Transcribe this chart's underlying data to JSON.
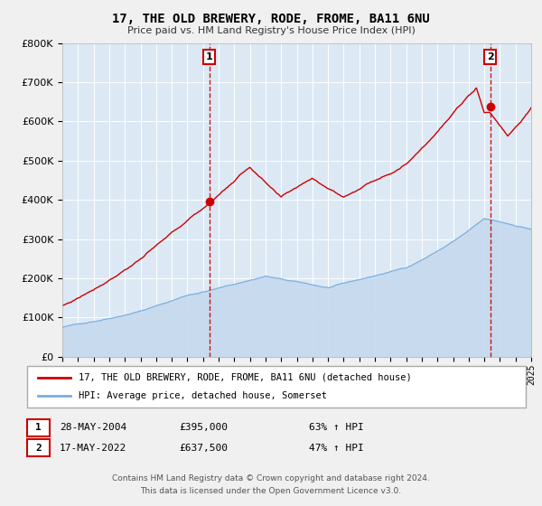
{
  "title": "17, THE OLD BREWERY, RODE, FROME, BA11 6NU",
  "subtitle": "Price paid vs. HM Land Registry's House Price Index (HPI)",
  "bg_color": "#dce9f5",
  "fig_bg_color": "#f0f0f0",
  "red_color": "#cc0000",
  "blue_color": "#7aade0",
  "blue_fill_color": "#c5d9ee",
  "sale1_year": 2004.41,
  "sale1_price": 395000,
  "sale2_year": 2022.37,
  "sale2_price": 637500,
  "ylim_min": 0,
  "ylim_max": 800000,
  "xlim_min": 1995,
  "xlim_max": 2025,
  "legend_label_red": "17, THE OLD BREWERY, RODE, FROME, BA11 6NU (detached house)",
  "legend_label_blue": "HPI: Average price, detached house, Somerset",
  "annotation1_date": "28-MAY-2004",
  "annotation1_price": "£395,000",
  "annotation1_pct": "63% ↑ HPI",
  "annotation2_date": "17-MAY-2022",
  "annotation2_price": "£637,500",
  "annotation2_pct": "47% ↑ HPI",
  "footer1": "Contains HM Land Registry data © Crown copyright and database right 2024.",
  "footer2": "This data is licensed under the Open Government Licence v3.0."
}
